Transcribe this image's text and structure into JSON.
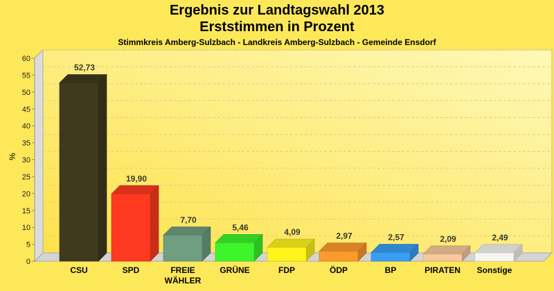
{
  "chart_data": {
    "type": "bar",
    "title": "Ergebnis zur Landtagswahl 2013",
    "subtitle": "Erststimmen in Prozent",
    "subsubtitle": "Stimmkreis Amberg-Sulzbach - Landkreis Amberg-Sulzbach - Gemeinde Ensdorf",
    "xlabel": "",
    "ylabel": "%",
    "ylim": [
      0,
      60
    ],
    "yticks": [
      0,
      5,
      10,
      15,
      20,
      25,
      30,
      35,
      40,
      45,
      50,
      55,
      60
    ],
    "grid": true,
    "three_d": true,
    "categories": [
      "CSU",
      "SPD",
      "FREIE WÄHLER",
      "GRÜNE",
      "FDP",
      "ÖDP",
      "BP",
      "PIRATEN",
      "Sonstige"
    ],
    "category_lines": [
      [
        "CSU"
      ],
      [
        "SPD"
      ],
      [
        "FREIE",
        "WÄHLER"
      ],
      [
        "GRÜNE"
      ],
      [
        "FDP"
      ],
      [
        "ÖDP"
      ],
      [
        "BP"
      ],
      [
        "PIRATEN"
      ],
      [
        "Sonstige"
      ]
    ],
    "values": [
      52.73,
      19.9,
      7.7,
      5.46,
      4.09,
      2.97,
      2.57,
      2.09,
      2.49
    ],
    "value_labels": [
      "52,73",
      "19,90",
      "7,70",
      "5,46",
      "4,09",
      "2,97",
      "2,57",
      "2,09",
      "2,49"
    ],
    "colors": [
      "#3f3a1d",
      "#ff3a20",
      "#6f9e80",
      "#3ef52c",
      "#fff51c",
      "#ff9a2c",
      "#3a9ef5",
      "#f7c99c",
      "#f6f6f0"
    ]
  }
}
